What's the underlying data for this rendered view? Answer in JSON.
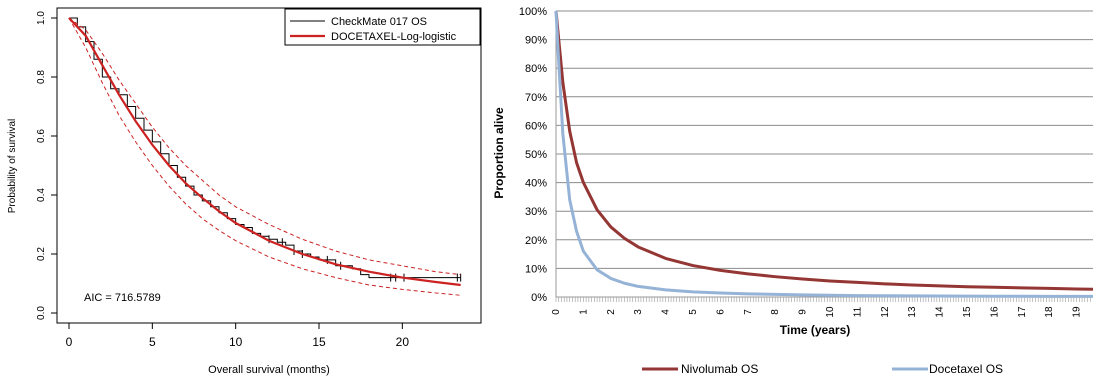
{
  "chart_data": [
    {
      "type": "line",
      "xlabel": "Overall survival (months)",
      "ylabel": "Probability of survival",
      "xlim": [
        0,
        24
      ],
      "ylim": [
        0,
        1
      ],
      "xticks": [
        "0",
        "5",
        "10",
        "15",
        "20"
      ],
      "yticks": [
        "0.0",
        "0.2",
        "0.4",
        "0.6",
        "0.8",
        "1.0"
      ],
      "annotation": "AIC = 716.5789",
      "legend_position": "top-right",
      "grid": false,
      "series": [
        {
          "name": "CheckMate 017 OS",
          "style": "step",
          "color": "#000000",
          "x": [
            0,
            0.5,
            1,
            1.5,
            2,
            2.5,
            3,
            3.5,
            4,
            4.5,
            5,
            5.5,
            6,
            6.5,
            7,
            7.5,
            8,
            8.5,
            9,
            9.5,
            10,
            10.5,
            11,
            11.5,
            12,
            12.5,
            13,
            13.5,
            14,
            14.5,
            15,
            16,
            17,
            17.5,
            18,
            19,
            20,
            21,
            22,
            23,
            23.5
          ],
          "y": [
            1.0,
            0.97,
            0.92,
            0.86,
            0.8,
            0.76,
            0.74,
            0.7,
            0.66,
            0.62,
            0.58,
            0.54,
            0.5,
            0.46,
            0.43,
            0.4,
            0.38,
            0.36,
            0.34,
            0.32,
            0.3,
            0.29,
            0.27,
            0.26,
            0.25,
            0.24,
            0.23,
            0.21,
            0.2,
            0.19,
            0.18,
            0.16,
            0.15,
            0.13,
            0.12,
            0.12,
            0.12,
            0.12,
            0.12,
            0.12,
            0.12
          ],
          "censor_x": [
            12,
            12.8,
            13.5,
            14,
            15.5,
            16.3,
            19.3,
            19.6,
            20.1,
            23.3,
            23.5
          ]
        },
        {
          "name": "DOCETAXEL-Log-logistic",
          "style": "line",
          "color": "#cc2222",
          "x": [
            0,
            1,
            2,
            3,
            4,
            5,
            6,
            7,
            8,
            9,
            10,
            12,
            14,
            16,
            18,
            20,
            22,
            23.5
          ],
          "y": [
            1.0,
            0.94,
            0.84,
            0.74,
            0.65,
            0.57,
            0.5,
            0.44,
            0.39,
            0.345,
            0.305,
            0.245,
            0.2,
            0.165,
            0.14,
            0.12,
            0.105,
            0.095
          ]
        },
        {
          "name": "",
          "style": "dashed",
          "color": "#cc2222",
          "x": [
            0,
            1,
            2,
            3,
            4,
            5,
            6,
            7,
            8,
            9,
            10,
            12,
            14,
            16,
            18,
            20,
            22,
            23.5
          ],
          "y": [
            1.0,
            0.96,
            0.88,
            0.79,
            0.71,
            0.63,
            0.56,
            0.5,
            0.45,
            0.4,
            0.36,
            0.3,
            0.25,
            0.21,
            0.18,
            0.16,
            0.14,
            0.13
          ]
        },
        {
          "name": "",
          "style": "dashed",
          "color": "#cc2222",
          "x": [
            0,
            1,
            2,
            3,
            4,
            5,
            6,
            7,
            8,
            9,
            10,
            12,
            14,
            16,
            18,
            20,
            22,
            23.5
          ],
          "y": [
            1.0,
            0.9,
            0.78,
            0.67,
            0.58,
            0.5,
            0.43,
            0.37,
            0.32,
            0.28,
            0.245,
            0.19,
            0.15,
            0.12,
            0.095,
            0.08,
            0.068,
            0.06
          ]
        }
      ]
    },
    {
      "type": "line",
      "xlabel": "Time (years)",
      "ylabel": "Proportion  alive",
      "xlim": [
        0,
        19.6
      ],
      "ylim": [
        0,
        100
      ],
      "xticks": [
        "0",
        "1",
        "2",
        "3",
        "4",
        "5",
        "6",
        "7",
        "8",
        "9",
        "10",
        "11",
        "12",
        "13",
        "14",
        "15",
        "16",
        "17",
        "18",
        "19"
      ],
      "yticks": [
        "0%",
        "10%",
        "20%",
        "30%",
        "40%",
        "50%",
        "60%",
        "70%",
        "80%",
        "90%",
        "100%"
      ],
      "grid": true,
      "legend_position": "bottom",
      "series": [
        {
          "name": "Nivolumab OS",
          "color": "#943634",
          "x": [
            0,
            0.1,
            0.25,
            0.5,
            0.75,
            1,
            1.5,
            2,
            2.5,
            3,
            4,
            5,
            6,
            7,
            8,
            9,
            10,
            11,
            12,
            13,
            14,
            15,
            16,
            17,
            18,
            19,
            19.6
          ],
          "y": [
            100,
            90,
            75,
            58,
            47,
            40,
            30.5,
            24.5,
            20.5,
            17.5,
            13.5,
            11,
            9.3,
            8.1,
            7.1,
            6.3,
            5.6,
            5.1,
            4.6,
            4.2,
            3.9,
            3.6,
            3.4,
            3.2,
            3.0,
            2.8,
            2.7
          ]
        },
        {
          "name": "Docetaxel OS",
          "color": "#95b3d7",
          "x": [
            0,
            0.1,
            0.25,
            0.5,
            0.75,
            1,
            1.5,
            2,
            2.5,
            3,
            4,
            5,
            6,
            7,
            8,
            9,
            10,
            11,
            12,
            13,
            14,
            15,
            16,
            17,
            18,
            19,
            19.6
          ],
          "y": [
            100,
            82,
            57,
            34,
            23,
            16,
            9.5,
            6.5,
            4.8,
            3.7,
            2.5,
            1.8,
            1.4,
            1.1,
            0.9,
            0.75,
            0.6,
            0.5,
            0.45,
            0.4,
            0.35,
            0.3,
            0.28,
            0.25,
            0.22,
            0.2,
            0.2
          ]
        }
      ]
    }
  ]
}
